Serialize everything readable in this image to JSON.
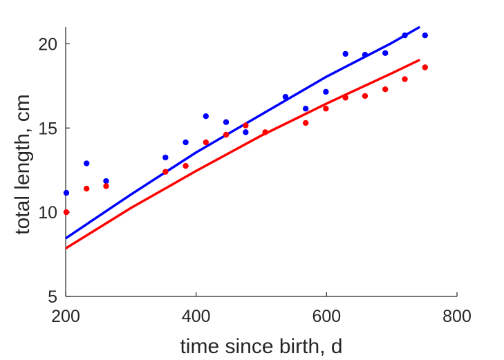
{
  "chart_data": {
    "type": "scatter",
    "title": "",
    "xlabel": "time since birth, d",
    "ylabel": "total length, cm",
    "xlim": [
      200,
      800
    ],
    "ylim": [
      5,
      21
    ],
    "xticks": [
      200,
      400,
      600,
      800
    ],
    "yticks": [
      5,
      10,
      15,
      20
    ],
    "grid": false,
    "legend": "none",
    "series": [
      {
        "color": "#0000ff",
        "points": [
          {
            "x": 201,
            "y": 11.15
          },
          {
            "x": 232,
            "y": 12.9
          },
          {
            "x": 262,
            "y": 11.85
          },
          {
            "x": 353,
            "y": 13.25
          },
          {
            "x": 384,
            "y": 14.15
          },
          {
            "x": 415,
            "y": 15.7
          },
          {
            "x": 446,
            "y": 15.35
          },
          {
            "x": 476,
            "y": 14.75
          },
          {
            "x": 537,
            "y": 16.85
          },
          {
            "x": 568,
            "y": 16.15
          },
          {
            "x": 599,
            "y": 17.15
          },
          {
            "x": 629,
            "y": 19.4
          },
          {
            "x": 659,
            "y": 19.35
          },
          {
            "x": 690,
            "y": 19.45
          },
          {
            "x": 720,
            "y": 20.5
          },
          {
            "x": 751,
            "y": 20.5
          }
        ],
        "fit": [
          {
            "x": 200,
            "y": 8.45
          },
          {
            "x": 300,
            "y": 11.05
          },
          {
            "x": 400,
            "y": 13.55
          },
          {
            "x": 500,
            "y": 15.8
          },
          {
            "x": 600,
            "y": 18.05
          },
          {
            "x": 700,
            "y": 20.05
          },
          {
            "x": 743,
            "y": 21.0
          }
        ]
      },
      {
        "color": "#ff0000",
        "points": [
          {
            "x": 201,
            "y": 10.0
          },
          {
            "x": 232,
            "y": 11.4
          },
          {
            "x": 262,
            "y": 11.55
          },
          {
            "x": 353,
            "y": 12.4
          },
          {
            "x": 384,
            "y": 12.75
          },
          {
            "x": 415,
            "y": 14.15
          },
          {
            "x": 446,
            "y": 14.6
          },
          {
            "x": 476,
            "y": 15.15
          },
          {
            "x": 506,
            "y": 14.75
          },
          {
            "x": 568,
            "y": 15.3
          },
          {
            "x": 599,
            "y": 16.15
          },
          {
            "x": 629,
            "y": 16.8
          },
          {
            "x": 659,
            "y": 16.9
          },
          {
            "x": 690,
            "y": 17.3
          },
          {
            "x": 720,
            "y": 17.9
          },
          {
            "x": 751,
            "y": 18.6
          }
        ],
        "fit": [
          {
            "x": 200,
            "y": 7.85
          },
          {
            "x": 300,
            "y": 10.25
          },
          {
            "x": 400,
            "y": 12.45
          },
          {
            "x": 500,
            "y": 14.55
          },
          {
            "x": 600,
            "y": 16.45
          },
          {
            "x": 700,
            "y": 18.25
          },
          {
            "x": 743,
            "y": 19.05
          }
        ]
      }
    ]
  }
}
